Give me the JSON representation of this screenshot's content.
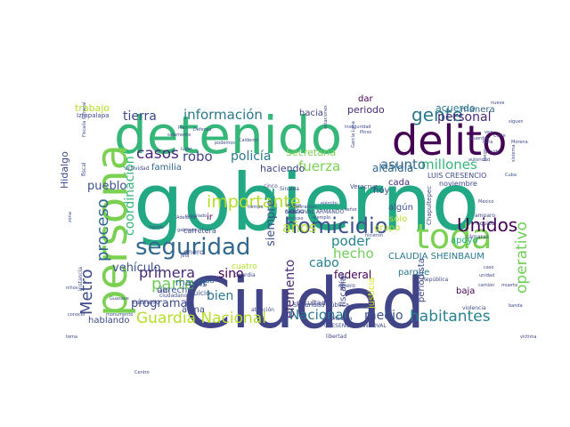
{
  "words": [
    {
      "text": "gobierno",
      "color": "#22a884"
    },
    {
      "text": "Ciudad",
      "color": "#414487"
    },
    {
      "text": "detenido",
      "color": "#35b779"
    },
    {
      "text": "persona",
      "color": "#7ad151"
    },
    {
      "text": "delito",
      "color": "#440154"
    },
    {
      "text": "seguridad",
      "color": "#31688e"
    },
    {
      "text": "toda",
      "color": "#7ad151"
    },
    {
      "text": "homicidio",
      "color": "#3b528b"
    },
    {
      "text": "gente",
      "color": "#2a788e"
    },
    {
      "text": "información",
      "color": "#2a788e"
    },
    {
      "text": "tierra",
      "color": "#3e4a89"
    },
    {
      "text": "personal",
      "color": "#482878"
    },
    {
      "text": "casos",
      "color": "#482878"
    },
    {
      "text": "robo",
      "color": "#414487"
    },
    {
      "text": "policía",
      "color": "#2a788e"
    },
    {
      "text": "fuerza",
      "color": "#7ad151"
    },
    {
      "text": "importante",
      "color": "#b5de2b"
    },
    {
      "text": "proceso",
      "color": "#31688e"
    },
    {
      "text": "Metro",
      "color": "#3e4a89"
    },
    {
      "text": "Unidos",
      "color": "#440154"
    },
    {
      "text": "millones",
      "color": "#35b779"
    },
    {
      "text": "primera",
      "color": "#482878"
    },
    {
      "text": "vehículo",
      "color": "#3b528b"
    },
    {
      "text": "parte",
      "color": "#6ece58"
    },
    {
      "text": "programa",
      "color": "#3e4a89"
    },
    {
      "text": "Guardia Nacional",
      "color": "#b5de2b"
    },
    {
      "text": "Nacional",
      "color": "#2a788e"
    },
    {
      "text": "habitantes",
      "color": "#26828e"
    },
    {
      "text": "operativo",
      "color": "#6ece58"
    },
    {
      "text": "coordinación",
      "color": "#35b779"
    },
    {
      "text": "pueblo",
      "color": "#3b528b"
    },
    {
      "text": "poder",
      "color": "#26828e"
    },
    {
      "text": "hecho",
      "color": "#6ece58"
    },
    {
      "text": "asunto",
      "color": "#31688e"
    },
    {
      "text": "años",
      "color": "#b5de2b"
    },
    {
      "text": "cabo",
      "color": "#26828e"
    },
    {
      "text": "bien",
      "color": "#2a788e"
    },
    {
      "text": "sino",
      "color": "#440154"
    },
    {
      "text": "elemento",
      "color": "#482878"
    },
    {
      "text": "medio",
      "color": "#3b528b"
    },
    {
      "text": "CLAUDIA SHEINBAUM",
      "color": "#2a788e"
    },
    {
      "text": "N",
      "color": "#1fa187"
    },
    {
      "text": "haciendo",
      "color": "#414487"
    },
    {
      "text": "siempre",
      "color": "#3b528b"
    },
    {
      "text": "alcaldía",
      "color": "#31688e"
    },
    {
      "text": "federal",
      "color": "#440154"
    },
    {
      "text": "Secretaría",
      "color": "#7ad151"
    },
    {
      "text": "periodo",
      "color": "#482878"
    },
    {
      "text": "acuerdo",
      "color": "#2a788e"
    },
    {
      "text": "hacia",
      "color": "#414487"
    },
    {
      "text": "trabajo",
      "color": "#b5de2b"
    },
    {
      "text": "Hidalgo",
      "color": "#3e4a89"
    },
    {
      "text": "mayor",
      "color": "#31688e"
    },
    {
      "text": "arma",
      "color": "#3e4a89"
    },
    {
      "text": "derecho",
      "color": "#3b528b"
    },
    {
      "text": "hablando",
      "color": "#3e4a89"
    },
    {
      "text": "familia",
      "color": "#31688e"
    },
    {
      "text": "apoyo",
      "color": "#22a884"
    },
    {
      "text": "grupo",
      "color": "#b5de2b"
    },
    {
      "text": "parque",
      "color": "#2a788e"
    },
    {
      "text": "cada",
      "color": "#482878"
    },
    {
      "text": "hoy",
      "color": "#3e4a89"
    },
    {
      "text": "algún",
      "color": "#3b528b"
    },
    {
      "text": "sólo",
      "color": "#b5de2b"
    },
    {
      "text": "fiscalía",
      "color": "#414487"
    },
    {
      "text": "justicia",
      "color": "#d2e21b"
    },
    {
      "text": "periodista",
      "color": "#3e4a89"
    },
    {
      "text": "baja",
      "color": "#440154"
    },
    {
      "text": "manera",
      "color": "#31688e"
    },
    {
      "text": "dar",
      "color": "#440154"
    },
    {
      "text": "ir",
      "color": "#440154"
    },
    {
      "text": "país",
      "color": "#3b528b"
    },
    {
      "text": "casa",
      "color": "#31688e"
    },
    {
      "text": "juicio",
      "color": "#3b528b"
    },
    {
      "text": "cuatro",
      "color": "#b5de2b"
    },
    {
      "text": "número",
      "color": "#3e4a89"
    },
    {
      "text": "resultado",
      "color": "#414487"
    },
    {
      "text": "enero",
      "color": "#3e4a89"
    },
    {
      "text": "carretera",
      "color": "#3b528b"
    },
    {
      "text": "LUIS CRESENCIO",
      "color": "#3e4a89"
    },
    {
      "text": "noviembre",
      "color": "#3e4a89"
    },
    {
      "text": "Seguridad Pública",
      "color": "#3e4a89"
    },
    {
      "text": "CRESENCIO SANDOVAL",
      "color": "#3e4a89"
    },
    {
      "text": "Chapultepec",
      "color": "#3e4a89"
    },
    {
      "text": "Veracruz",
      "color": "#3e4a89"
    },
    {
      "text": "Sinaloa",
      "color": "#3e4a89"
    },
    {
      "text": "cinco",
      "color": "#3e4a89"
    },
    {
      "text": "Guardia",
      "color": "#3e4a89"
    },
    {
      "text": "atención",
      "color": "#3e4a89"
    },
    {
      "text": "libertad",
      "color": "#3e4a89"
    },
    {
      "text": "dinero",
      "color": "#3e4a89"
    },
    {
      "text": "Iztapalapa",
      "color": "#3e4a89"
    },
    {
      "text": "fiscal",
      "color": "#3e4a89"
    },
    {
      "text": "actividad",
      "color": "#3e4a89"
    },
    {
      "text": "instancia",
      "color": "#3e4a89"
    },
    {
      "text": "Centro",
      "color": "#3e4a89"
    },
    {
      "text": "Madero",
      "color": "#3e4a89"
    },
    {
      "text": "amparo",
      "color": "#3e4a89"
    },
    {
      "text": "equipo",
      "color": "#3e4a89"
    },
    {
      "text": "cámaras",
      "color": "#3e4a89"
    },
    {
      "text": "violencia",
      "color": "#3e4a89"
    },
    {
      "text": "República",
      "color": "#3e4a89"
    },
    {
      "text": "Muchas",
      "color": "#3e4a89"
    },
    {
      "text": "nueve",
      "color": "#3e4a89"
    },
    {
      "text": "vez",
      "color": "#3e4a89"
    },
    {
      "text": "solamente",
      "color": "#3e4a89"
    },
    {
      "text": "lugar",
      "color": "#3e4a89"
    },
    {
      "text": "Defensa",
      "color": "#3e4a89"
    },
    {
      "text": "Fiscalía General",
      "color": "#3e4a89"
    },
    {
      "text": "herido",
      "color": "#3e4a89"
    },
    {
      "text": "vinculado",
      "color": "#3e4a89"
    },
    {
      "text": "Adelante",
      "color": "#3e4a89"
    },
    {
      "text": "gabinete",
      "color": "#3e4a89"
    },
    {
      "text": "jefa",
      "color": "#3e4a89"
    },
    {
      "text": "tiempo",
      "color": "#3e4a89"
    },
    {
      "text": "alguna",
      "color": "#3e4a89"
    },
    {
      "text": "ejemplo",
      "color": "#3e4a89"
    },
    {
      "text": "operación",
      "color": "#3e4a89"
    },
    {
      "text": "incluso",
      "color": "#3e4a89"
    },
    {
      "text": "conocer",
      "color": "#3e4a89"
    },
    {
      "text": "monumento",
      "color": "#3e4a89"
    },
    {
      "text": "Guasave",
      "color": "#3e4a89"
    },
    {
      "text": "nivel",
      "color": "#3e4a89"
    },
    {
      "text": "hicieron",
      "color": "#3e4a89"
    },
    {
      "text": "podemos",
      "color": "#3e4a89"
    },
    {
      "text": "Calderón",
      "color": "#3e4a89"
    },
    {
      "text": "Plan",
      "color": "#3e4a89"
    },
    {
      "text": "Pinos",
      "color": "#3e4a89"
    },
    {
      "text": "Corte",
      "color": "#3e4a89"
    },
    {
      "text": "sido",
      "color": "#3e4a89"
    },
    {
      "text": "García Luna",
      "color": "#3e4a89"
    },
    {
      "text": "estaciones",
      "color": "#3e4a89"
    },
    {
      "text": "inseguridad",
      "color": "#3e4a89"
    },
    {
      "text": "ejército",
      "color": "#3e4a89"
    },
    {
      "text": "señor",
      "color": "#3e4a89"
    },
    {
      "text": "México",
      "color": "#3e4a89"
    },
    {
      "text": "luego",
      "color": "#3e4a89"
    },
    {
      "text": "Cuba",
      "color": "#3e4a89"
    },
    {
      "text": "siguen",
      "color": "#3e4a89"
    },
    {
      "text": "acuerdos",
      "color": "#3e4a89"
    },
    {
      "text": "autoridad",
      "color": "#3e4a89"
    },
    {
      "text": "hora",
      "color": "#3e4a89"
    },
    {
      "text": "Morena",
      "color": "#3e4a89"
    },
    {
      "text": "sistema",
      "color": "#3e4a89"
    },
    {
      "text": "caso",
      "color": "#3e4a89"
    },
    {
      "text": "unidad",
      "color": "#3e4a89"
    },
    {
      "text": "camión",
      "color": "#3e4a89"
    },
    {
      "text": "muerte",
      "color": "#3e4a89"
    },
    {
      "text": "banda",
      "color": "#3e4a89"
    },
    {
      "text": "víctima",
      "color": "#3e4a89"
    },
    {
      "text": "niños",
      "color": "#3e4a89"
    },
    {
      "text": "tema",
      "color": "#3e4a89"
    },
    {
      "text": "zona",
      "color": "#3e4a89"
    },
    {
      "text": "ciudadano",
      "color": "#3e4a89"
    },
    {
      "text": "colonia",
      "color": "#3e4a89"
    },
    {
      "text": "calle",
      "color": "#3e4a89"
    },
    {
      "text": "SANDOVAL ARMANDO",
      "color": "#3e4a89"
    }
  ]
}
